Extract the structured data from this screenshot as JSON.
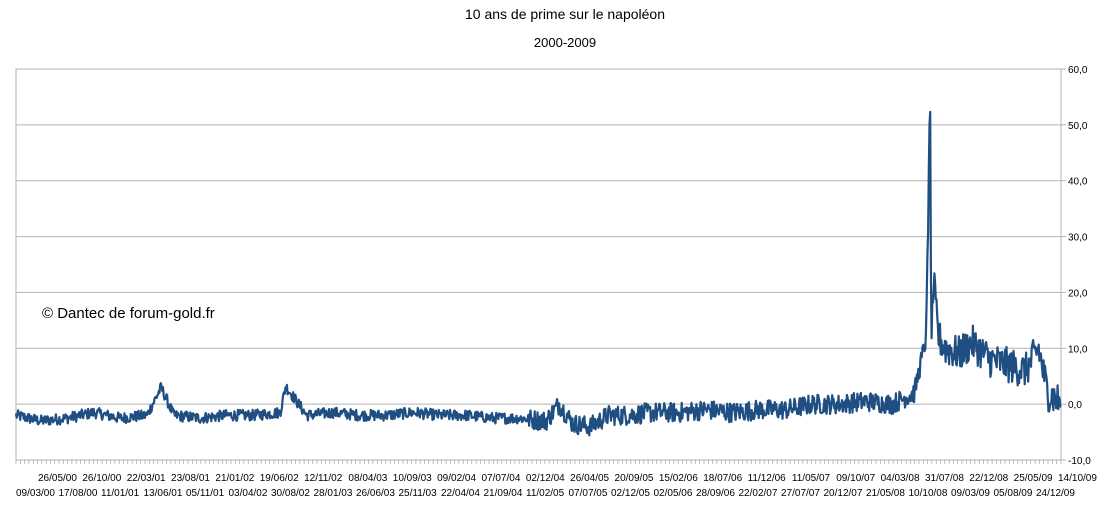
{
  "chart_data": {
    "type": "line",
    "title": "10 ans de prime sur le napoléon",
    "subtitle": "2000-2009",
    "annotation": "© Dantec de forum-gold.fr",
    "ylim": [
      -10,
      60
    ],
    "yticks": [
      "60,0",
      "50,0",
      "40,0",
      "30,0",
      "20,0",
      "10,0",
      "0,0",
      "-10,0"
    ],
    "x_labels_top": [
      "26/05/00",
      "26/10/00",
      "22/03/01",
      "23/08/01",
      "21/01/02",
      "19/06/02",
      "12/11/02",
      "08/04/03",
      "10/09/03",
      "09/02/04",
      "07/07/04",
      "02/12/04",
      "26/04/05",
      "20/09/05",
      "15/02/06",
      "18/07/06",
      "11/12/06",
      "11/05/07",
      "09/10/07",
      "04/03/08",
      "31/07/08",
      "22/12/08",
      "25/05/09",
      "14/10/09"
    ],
    "x_labels_bottom": [
      "09/03/00",
      "17/08/00",
      "11/01/01",
      "13/06/01",
      "05/11/01",
      "03/04/02",
      "30/08/02",
      "28/01/03",
      "26/06/03",
      "25/11/03",
      "22/04/04",
      "21/09/04",
      "11/02/05",
      "07/07/05",
      "02/12/05",
      "02/05/06",
      "28/09/06",
      "22/02/07",
      "27/07/07",
      "20/12/07",
      "21/05/08",
      "10/10/08",
      "09/03/09",
      "05/08/09",
      "24/12/09"
    ],
    "series": [
      {
        "color": "#1f4e82",
        "x": [
          "2000-03-09",
          "2000-06-01",
          "2000-09-01",
          "2000-12-01",
          "2001-03-01",
          "2001-06-01",
          "2001-07-20",
          "2001-09-01",
          "2001-12-01",
          "2002-03-01",
          "2002-06-01",
          "2002-09-01",
          "2002-09-20",
          "2002-12-01",
          "2003-03-01",
          "2003-06-01",
          "2003-09-01",
          "2003-12-01",
          "2004-03-01",
          "2004-06-01",
          "2004-09-01",
          "2004-12-01",
          "2005-03-01",
          "2005-04-15",
          "2005-06-01",
          "2005-08-01",
          "2005-10-01",
          "2005-12-01",
          "2006-03-01",
          "2006-06-01",
          "2006-09-01",
          "2006-12-01",
          "2007-03-01",
          "2007-06-01",
          "2007-09-01",
          "2007-12-01",
          "2008-03-01",
          "2008-06-01",
          "2008-08-15",
          "2008-09-25",
          "2008-10-08",
          "2008-10-12",
          "2008-10-20",
          "2008-11-05",
          "2008-12-01",
          "2009-01-15",
          "2009-03-01",
          "2009-05-01",
          "2009-07-01",
          "2009-08-01",
          "2009-09-01",
          "2009-10-15",
          "2009-11-15",
          "2009-12-24"
        ],
        "y": [
          -2.0,
          -3.0,
          -2.5,
          -1.5,
          -2.5,
          -2.0,
          3.0,
          -2.0,
          -2.5,
          -2.0,
          -2.0,
          -1.5,
          3.2,
          -2.0,
          -1.5,
          -2.0,
          -2.0,
          -1.5,
          -2.0,
          -2.0,
          -2.5,
          -2.5,
          -3.0,
          0.0,
          -3.5,
          -4.0,
          -2.0,
          -2.0,
          -1.5,
          -1.5,
          -1.0,
          -1.5,
          -1.0,
          -1.0,
          0.0,
          0.0,
          0.5,
          0.0,
          2.0,
          12.0,
          57.0,
          10.0,
          22.0,
          12.0,
          10.0,
          9.0,
          11.0,
          8.0,
          7.0,
          6.5,
          6.0,
          10.0,
          2.0,
          0.5
        ]
      }
    ]
  }
}
